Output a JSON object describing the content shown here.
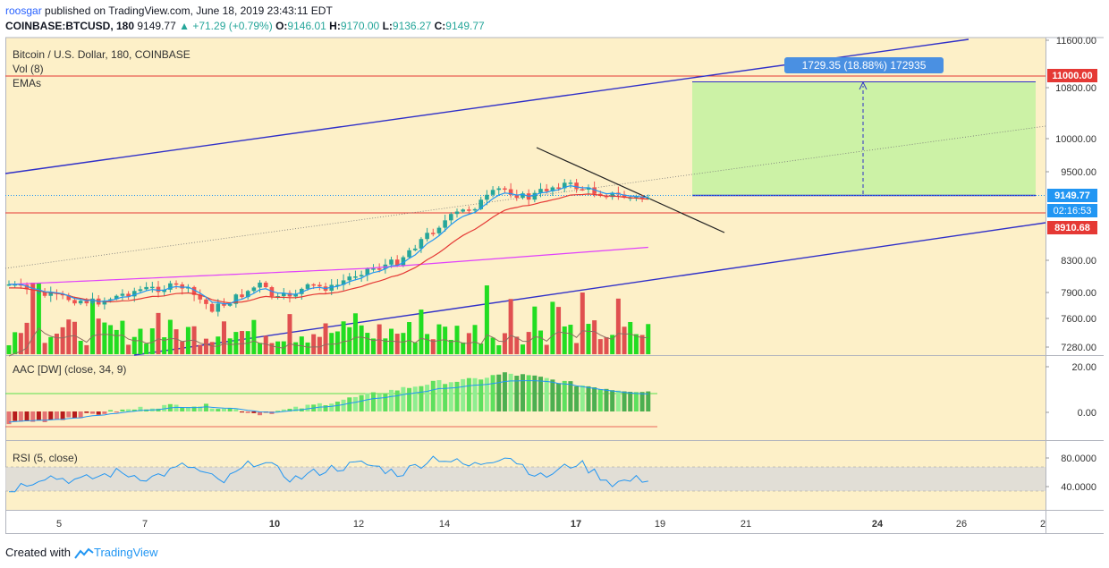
{
  "header": {
    "line1_user": "roosgar",
    "line1_rest": "published on TradingView.com, June 18, 2019 23:43:11 EDT",
    "symbol": "COINBASE:BTCUSD, 180",
    "last": "9149.77",
    "change": "+71.29 (+0.79%)",
    "o_label": "O:",
    "o": "9146.01",
    "h_label": "H:",
    "h": "9170.00",
    "l_label": "L:",
    "l": "9136.27",
    "c_label": "C:",
    "c": "9149.77"
  },
  "legend": {
    "title": "Bitcoin / U.S. Dollar, 180, COINBASE",
    "vol": "Vol (8)",
    "emas": "EMAs",
    "aac": "AAC [DW] (close, 34, 9)",
    "rsi": "RSI (5, close)"
  },
  "measure_label": "1729.35 (18.88%) 172935",
  "price_tags": {
    "target": "11000.00",
    "last": "9149.77",
    "countdown": "02:16:53",
    "support": "8910.68"
  },
  "footer": {
    "created_with": "Created with",
    "brand": "TradingView"
  },
  "colors": {
    "up": "#26a69a",
    "down": "#ef5350",
    "vol_up": "#22dd22",
    "vol_down": "#e05050",
    "channel": "#3030c8",
    "ema_fast": "#2196f3",
    "ema_slow": "#e53935",
    "ema_long": "#e040fb",
    "target_zone": "#ccf2a6",
    "background": "#fdf0c8"
  },
  "chart_data": [
    {
      "type": "candlestick",
      "title": "Bitcoin / U.S. Dollar, 180, COINBASE",
      "x_ticks": [
        "5",
        "7",
        "10",
        "12",
        "14",
        "17",
        "19",
        "21",
        "24",
        "26",
        "2"
      ],
      "y_ticks": [
        "11600.00",
        "10800.00",
        "10000.00",
        "9500.00",
        "8300.00",
        "7900.00",
        "7600.00",
        "7280.00"
      ],
      "series": [
        {
          "name": "EMAs",
          "values": [
            7850,
            7950,
            8050,
            8200,
            8650,
            9149.77
          ]
        }
      ],
      "annotations": [
        "resistance 11000.00",
        "support 8910.68",
        "target zone 9149.77 → 11000.00"
      ]
    },
    {
      "type": "bar",
      "title": "AAC [DW] (close, 34, 9)",
      "y_ticks": [
        "20.00",
        "0.00"
      ],
      "values": [
        -5,
        -4,
        -2,
        0,
        2,
        3,
        2,
        -1,
        1,
        4,
        7,
        10,
        13,
        14,
        17,
        15,
        12,
        10,
        9
      ]
    },
    {
      "type": "line",
      "title": "RSI (5, close)",
      "y_ticks": [
        "80.0000",
        "40.0000"
      ],
      "values": [
        35,
        55,
        48,
        60,
        52,
        70,
        45,
        78,
        50,
        65,
        72,
        58,
        82,
        68,
        85,
        52,
        74,
        45,
        52
      ]
    }
  ]
}
